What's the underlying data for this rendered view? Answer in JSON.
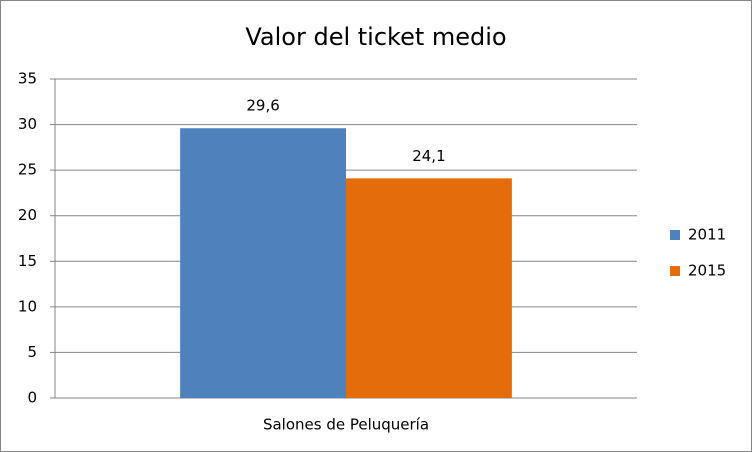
{
  "chart_data": {
    "type": "bar",
    "title": "Valor del ticket medio",
    "categories": [
      "Salones de Peluquería"
    ],
    "series": [
      {
        "name": "2011",
        "color": "#4f81bd",
        "values": [
          29.6
        ],
        "value_labels": [
          "29,6"
        ]
      },
      {
        "name": "2015",
        "color": "#e46c0a",
        "values": [
          24.1
        ],
        "value_labels": [
          "24,1"
        ]
      }
    ],
    "ylim": [
      0,
      35
    ],
    "yticks": [
      0,
      5,
      10,
      15,
      20,
      25,
      30,
      35
    ],
    "grid": true,
    "legend": "right"
  }
}
